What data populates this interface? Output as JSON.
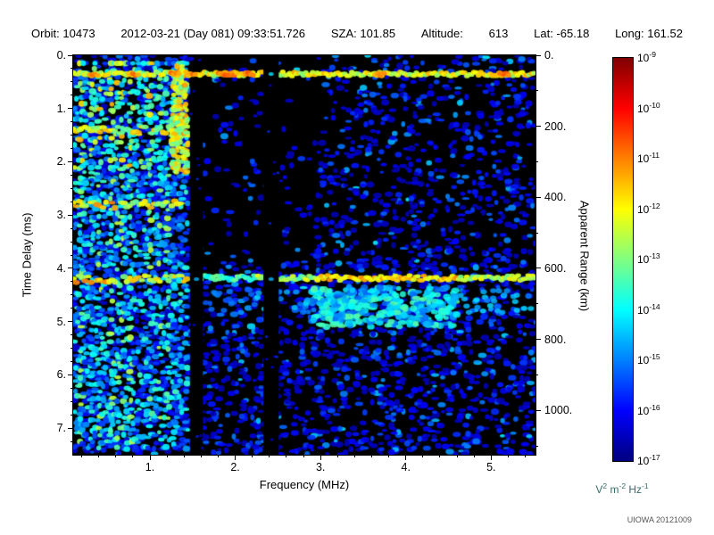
{
  "header": {
    "items": [
      "Orbit: 10473",
      "2012-03-21 (Day 081) 09:33:51.726",
      "SZA: 101.85",
      "Altitude:",
      "613",
      "Lat: -65.18",
      "Long: 161.52"
    ]
  },
  "chart_data": {
    "type": "heatmap",
    "description": "Radar sounder ionogram: received spectral density vs frequency and time delay",
    "x_axis": {
      "label": "Frequency (MHz)",
      "min": 0.1,
      "max": 5.52,
      "major_ticks": [
        1,
        2,
        3,
        4,
        5
      ],
      "major_tick_labels": [
        "1.",
        "2.",
        "3.",
        "4.",
        "5."
      ],
      "minor_tick_step": 0.2
    },
    "y_axis": {
      "label": "Time Delay (ms)",
      "min": 0,
      "max": 7.5,
      "major_ticks": [
        0,
        1,
        2,
        3,
        4,
        5,
        6,
        7
      ],
      "major_tick_labels": [
        "0.",
        "1.",
        "2.",
        "3.",
        "4.",
        "5.",
        "6.",
        "7."
      ],
      "minor_tick_step": 0.25
    },
    "y2_axis": {
      "label": "Apparent Range (km)",
      "km_per_ms": 150,
      "major_ticks": [
        0,
        200,
        400,
        600,
        800,
        1000
      ],
      "major_tick_labels": [
        "0.",
        "200.",
        "400.",
        "600.",
        "800.",
        "1000."
      ],
      "minor_tick_step": 100
    },
    "colorbar": {
      "tick_base": "10",
      "tick_exponents": [
        "-9",
        "-10",
        "-11",
        "-12",
        "-13",
        "-14",
        "-15",
        "-16",
        "-17"
      ],
      "max_exp": -9,
      "min_exp": -17,
      "unit_parts": [
        [
          "V",
          "2"
        ],
        [
          "m",
          "-2"
        ],
        [
          "Hz",
          "-1"
        ]
      ],
      "colormap": "jet",
      "top_color": "#800000",
      "bottom_color": "#000080"
    },
    "features": {
      "background_color": "#000000",
      "ionospheric_echo_region": {
        "freq_mhz": [
          0.1,
          1.45
        ],
        "delay_ms": [
          0,
          7.5
        ],
        "style": "dense vertical blue-cyan-green stripes, brightest near top-left"
      },
      "leading_edge_band": {
        "delay_ms": 0.35,
        "freq_mhz": [
          0.1,
          5.52
        ],
        "style": "bright cyan-green horizontal band across full bandwidth"
      },
      "surface_echo_band": {
        "delay_ms": 4.2,
        "freq_mhz": [
          1.5,
          5.52
        ],
        "style": "bright green horizontal band, brightest 3.0-4.5 MHz, diffuse cyan tail below"
      },
      "left_bands_delay_ms": [
        1.4,
        2.8,
        4.2
      ],
      "dark_columns_freq_mhz": [
        [
          1.47,
          1.62
        ],
        [
          2.33,
          2.51
        ]
      ],
      "noise": "scattered dark-blue speckle, denser below 4 ms and sparse between 1.6-2.9 MHz above 3.9 ms"
    },
    "render_seed": 20121009
  },
  "credit": "UIOWA 20121009"
}
